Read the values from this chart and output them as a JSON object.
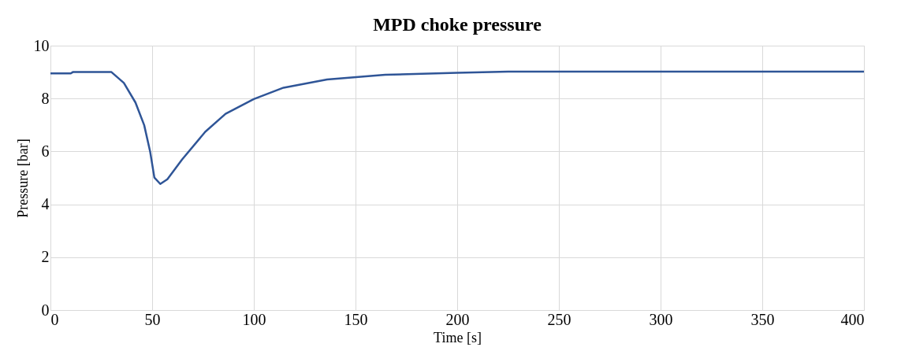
{
  "chart_data": {
    "type": "line",
    "title": "MPD choke pressure",
    "xlabel": "Time [s]",
    "ylabel": "Pressure [bar]",
    "x": [
      0,
      10,
      11,
      30,
      36.1,
      41.8,
      46.1,
      49,
      51.1,
      54,
      57.5,
      64.7,
      76.1,
      86.1,
      100,
      114.6,
      136,
      150.3,
      164.6,
      200,
      225,
      400
    ],
    "series": [
      {
        "color": "#2f5597",
        "values": [
          8.95,
          8.95,
          9.0,
          9.0,
          8.59,
          7.85,
          6.99,
          6.0,
          5.01,
          4.77,
          4.95,
          5.69,
          6.74,
          7.42,
          7.98,
          8.41,
          8.72,
          8.81,
          8.9,
          8.97,
          9.02,
          9.02
        ]
      }
    ],
    "xlim": [
      0,
      400
    ],
    "xticks": [
      0,
      50,
      100,
      150,
      200,
      250,
      300,
      350,
      400
    ],
    "ylim": [
      0,
      10
    ],
    "yticks": [
      0,
      2,
      4,
      6,
      8,
      10
    ],
    "grid": true,
    "legend": false,
    "marker": "none",
    "line_style": "solid"
  }
}
